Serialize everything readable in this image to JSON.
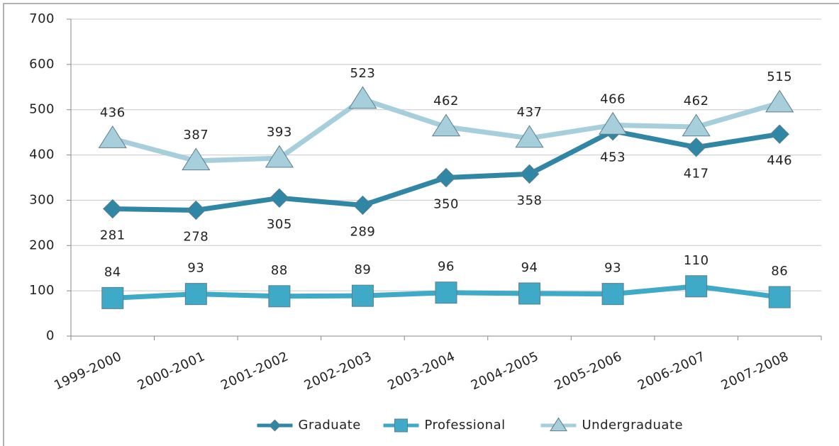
{
  "chart_data": {
    "type": "line",
    "categories": [
      "1999-2000",
      "2000-2001",
      "2001-2002",
      "2002-2003",
      "2003-2004",
      "2004-2005",
      "2005-2006",
      "2006-2007",
      "2007-2008"
    ],
    "series": [
      {
        "name": "Graduate",
        "color": "#2f87a5",
        "marker": "diamond",
        "label_side": "below",
        "values": [
          281,
          278,
          305,
          289,
          350,
          358,
          453,
          417,
          446
        ]
      },
      {
        "name": "Professional",
        "color": "#3eaac7",
        "marker": "square",
        "label_side": "above",
        "values": [
          84,
          93,
          88,
          89,
          96,
          94,
          93,
          110,
          86
        ]
      },
      {
        "name": "Undergraduate",
        "color": "#a7cedb",
        "marker": "triangle",
        "label_side": "above",
        "values": [
          436,
          387,
          393,
          523,
          462,
          437,
          466,
          462,
          515
        ]
      }
    ],
    "ylim": [
      0,
      700
    ],
    "yticks": [
      0,
      100,
      200,
      300,
      400,
      500,
      600,
      700
    ],
    "grid": true,
    "legend": "bottom"
  }
}
